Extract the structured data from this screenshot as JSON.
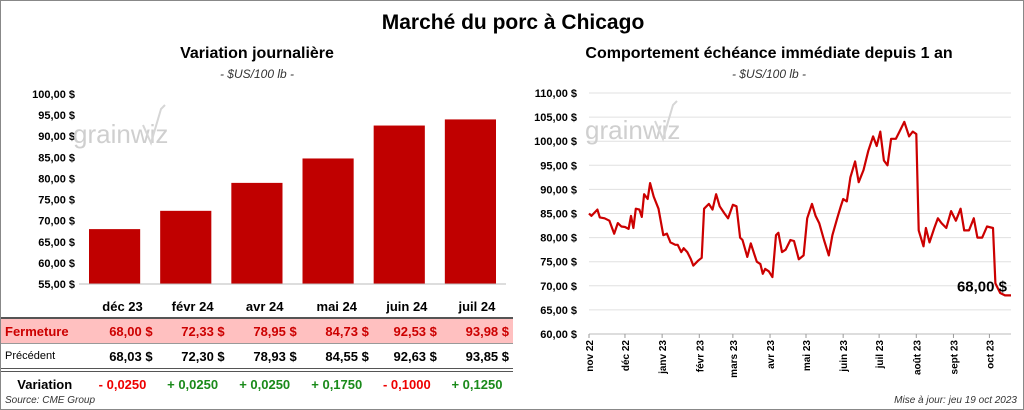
{
  "title": "Marché du porc à Chicago",
  "left": {
    "title": "Variation journalière",
    "unit": "- $US/100 lb -",
    "watermark": "grainwiz",
    "table": {
      "columns": [
        "déc 23",
        "févr 24",
        "avr 24",
        "mai 24",
        "juin 24",
        "juil 24"
      ],
      "rows": [
        {
          "label": "Fermeture",
          "values": [
            "68,00  $",
            "72,33  $",
            "78,95  $",
            "84,73  $",
            "92,53  $",
            "93,98  $"
          ]
        },
        {
          "label": "Précédent",
          "values": [
            "68,03  $",
            "72,30  $",
            "78,93  $",
            "84,55  $",
            "92,63  $",
            "93,85  $"
          ]
        },
        {
          "label": "Variation",
          "values": [
            "- 0,0250",
            "+ 0,0250",
            "+ 0,0250",
            "+ 0,1750",
            "- 0,1000",
            "+ 0,1250"
          ]
        }
      ]
    },
    "source": "Source: CME Group"
  },
  "right": {
    "title": "Comportement  échéance immédiate depuis 1 an",
    "unit": "- $US/100 lb -",
    "watermark": "grainwiz",
    "last_label": "68,00 $",
    "updated": "Mise à jour: jeu 19 oct 2023"
  },
  "colors": {
    "bar": "#c00000",
    "line": "#cc0000",
    "positive": "#1a8a1a",
    "negative": "#ee0000",
    "highlight": "#ffc0c0"
  },
  "chart_data": [
    {
      "type": "bar",
      "categories": [
        "déc 23",
        "févr 24",
        "avr 24",
        "mai 24",
        "juin 24",
        "juil 24"
      ],
      "values": [
        68.0,
        72.33,
        78.95,
        84.73,
        92.53,
        93.98
      ],
      "ylim": [
        55,
        100
      ],
      "yticks": [
        "55,00 $",
        "60,00 $",
        "65,00 $",
        "70,00 $",
        "75,00 $",
        "80,00 $",
        "85,00 $",
        "90,00 $",
        "95,00 $",
        "100,00 $"
      ],
      "grid": false
    },
    {
      "type": "line",
      "ylim": [
        60,
        110
      ],
      "yticks": [
        "60,00 $",
        "65,00 $",
        "70,00 $",
        "75,00 $",
        "80,00 $",
        "85,00 $",
        "90,00 $",
        "95,00 $",
        "100,00 $",
        "105,00 $",
        "110,00 $"
      ],
      "xticks": [
        "nov 22",
        "déc 22",
        "janv 23",
        "févr 23",
        "mars 23",
        "avr 23",
        "mai 23",
        "juin 23",
        "juil 23",
        "août 23",
        "sept 23",
        "oct 23"
      ],
      "xtick_dates": [
        "2022-11-01",
        "2022-12-01",
        "2023-01-01",
        "2023-02-01",
        "2023-03-01",
        "2023-04-01",
        "2023-05-01",
        "2023-06-01",
        "2023-07-01",
        "2023-08-01",
        "2023-09-01",
        "2023-10-01"
      ],
      "xlim": [
        "2022-11-01",
        "2023-10-19"
      ],
      "grid": true,
      "x": [
        "2022-11-01",
        "2022-11-03",
        "2022-11-08",
        "2022-11-10",
        "2022-11-14",
        "2022-11-18",
        "2022-11-22",
        "2022-11-25",
        "2022-11-28",
        "2022-12-01",
        "2022-12-04",
        "2022-12-06",
        "2022-12-08",
        "2022-12-10",
        "2022-12-13",
        "2022-12-15",
        "2022-12-17",
        "2022-12-20",
        "2022-12-22",
        "2022-12-25",
        "2022-12-29",
        "2023-01-02",
        "2023-01-05",
        "2023-01-08",
        "2023-01-12",
        "2023-01-14",
        "2023-01-17",
        "2023-01-19",
        "2023-01-22",
        "2023-01-25",
        "2023-01-27",
        "2023-01-31",
        "2023-02-03",
        "2023-02-05",
        "2023-02-09",
        "2023-02-12",
        "2023-02-15",
        "2023-02-18",
        "2023-02-22",
        "2023-02-25",
        "2023-03-01",
        "2023-03-04",
        "2023-03-07",
        "2023-03-09",
        "2023-03-13",
        "2023-03-16",
        "2023-03-19",
        "2023-03-21",
        "2023-03-24",
        "2023-03-26",
        "2023-03-28",
        "2023-03-31",
        "2023-04-03",
        "2023-04-06",
        "2023-04-08",
        "2023-04-11",
        "2023-04-14",
        "2023-04-18",
        "2023-04-21",
        "2023-04-25",
        "2023-04-29",
        "2023-05-02",
        "2023-05-06",
        "2023-05-09",
        "2023-05-12",
        "2023-05-16",
        "2023-05-20",
        "2023-05-23",
        "2023-05-27",
        "2023-05-30",
        "2023-06-01",
        "2023-06-04",
        "2023-06-07",
        "2023-06-11",
        "2023-06-14",
        "2023-06-18",
        "2023-06-22",
        "2023-06-26",
        "2023-06-29",
        "2023-07-02",
        "2023-07-05",
        "2023-07-08",
        "2023-07-11",
        "2023-07-15",
        "2023-07-18",
        "2023-07-22",
        "2023-07-26",
        "2023-07-29",
        "2023-08-01",
        "2023-08-03",
        "2023-08-07",
        "2023-08-09",
        "2023-08-12",
        "2023-08-16",
        "2023-08-19",
        "2023-08-22",
        "2023-08-26",
        "2023-08-30",
        "2023-09-03",
        "2023-09-07",
        "2023-09-10",
        "2023-09-14",
        "2023-09-18",
        "2023-09-21",
        "2023-09-25",
        "2023-09-29",
        "2023-10-04",
        "2023-10-06",
        "2023-10-10",
        "2023-10-14",
        "2023-10-19"
      ],
      "y": [
        85.0,
        84.5,
        85.8,
        84.2,
        84.0,
        83.5,
        80.8,
        83.0,
        82.3,
        82.2,
        81.8,
        84.5,
        82.0,
        86.0,
        85.8,
        84.3,
        89.0,
        88.0,
        91.3,
        88.5,
        86.0,
        80.5,
        80.8,
        79.0,
        78.5,
        78.5,
        77.0,
        77.8,
        77.0,
        75.5,
        74.2,
        75.2,
        75.8,
        86.0,
        87.0,
        85.8,
        89.0,
        86.5,
        85.0,
        84.0,
        86.8,
        86.5,
        80.0,
        79.5,
        76.0,
        78.8,
        76.5,
        75.0,
        74.5,
        72.5,
        73.5,
        73.0,
        71.8,
        80.5,
        81.0,
        77.0,
        77.5,
        79.5,
        79.3,
        75.5,
        76.3,
        84.0,
        87.0,
        84.5,
        83.0,
        79.5,
        76.3,
        80.5,
        84.0,
        86.5,
        88.0,
        87.5,
        92.5,
        95.8,
        91.5,
        94.0,
        98.0,
        101.0,
        99.0,
        102.0,
        96.0,
        95.0,
        100.5,
        100.5,
        102.0,
        104.0,
        101.0,
        102.0,
        101.5,
        81.5,
        78.2,
        82.0,
        79.0,
        82.0,
        84.0,
        83.0,
        82.0,
        85.5,
        83.5,
        86.0,
        81.5,
        81.5,
        84.0,
        80.0,
        80.0,
        82.3,
        82.0,
        70.5,
        68.5,
        68.0,
        68.0
      ]
    }
  ]
}
